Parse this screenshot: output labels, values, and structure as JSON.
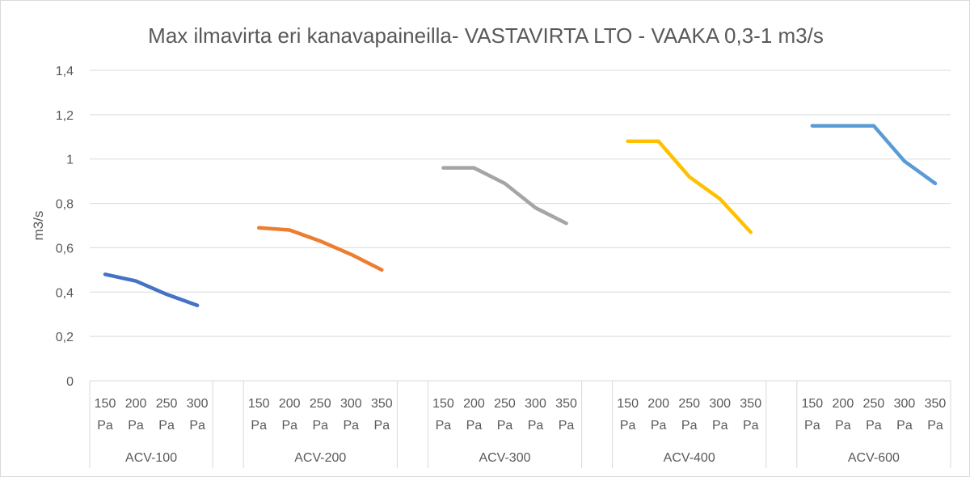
{
  "chart_data": {
    "type": "line",
    "title": "Max ilmavirta eri kanavapaineilla- VASTAVIRTA LTO - VAAKA 0,3-1 m3/s",
    "xlabel": "",
    "ylabel": "m3/s",
    "ylim": [
      0,
      1.4
    ],
    "y_ticks": [
      "0",
      "0,2",
      "0,4",
      "0,6",
      "0,8",
      "1",
      "1,2",
      "1,4"
    ],
    "grid": true,
    "legend": "none",
    "groups": [
      {
        "name": "ACV-100",
        "color": "#4472C4",
        "categories": [
          [
            "150",
            "Pa"
          ],
          [
            "200",
            "Pa"
          ],
          [
            "250",
            "Pa"
          ],
          [
            "300",
            "Pa"
          ]
        ],
        "values": [
          0.48,
          0.45,
          0.39,
          0.34
        ]
      },
      {
        "name": "ACV-200",
        "color": "#ED7D31",
        "categories": [
          [
            "150",
            "Pa"
          ],
          [
            "200",
            "Pa"
          ],
          [
            "250",
            "Pa"
          ],
          [
            "300",
            "Pa"
          ],
          [
            "350",
            "Pa"
          ]
        ],
        "values": [
          0.69,
          0.68,
          0.63,
          0.57,
          0.5
        ]
      },
      {
        "name": "ACV-300",
        "color": "#A5A5A5",
        "categories": [
          [
            "150",
            "Pa"
          ],
          [
            "200",
            "Pa"
          ],
          [
            "250",
            "Pa"
          ],
          [
            "300",
            "Pa"
          ],
          [
            "350",
            "Pa"
          ]
        ],
        "values": [
          0.96,
          0.96,
          0.89,
          0.78,
          0.71
        ]
      },
      {
        "name": "ACV-400",
        "color": "#FFC000",
        "categories": [
          [
            "150",
            "Pa"
          ],
          [
            "200",
            "Pa"
          ],
          [
            "250",
            "Pa"
          ],
          [
            "300",
            "Pa"
          ],
          [
            "350",
            "Pa"
          ]
        ],
        "values": [
          1.08,
          1.08,
          0.92,
          0.82,
          0.67
        ]
      },
      {
        "name": "ACV-600",
        "color": "#5B9BD5",
        "categories": [
          [
            "150",
            "Pa"
          ],
          [
            "200",
            "Pa"
          ],
          [
            "250",
            "Pa"
          ],
          [
            "300",
            "Pa"
          ],
          [
            "350",
            "Pa"
          ]
        ],
        "values": [
          1.15,
          1.15,
          1.15,
          0.99,
          0.89
        ]
      }
    ]
  }
}
